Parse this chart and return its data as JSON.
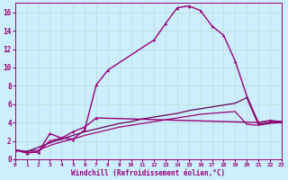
{
  "title": "",
  "xlabel": "Windchill (Refroidissement éolien,°C)",
  "bg_color": "#cceeff",
  "grid_color": "#b8ddd0",
  "line_color": "#990077",
  "x_ticks": [
    0,
    1,
    2,
    3,
    4,
    5,
    6,
    7,
    8,
    9,
    10,
    11,
    12,
    13,
    14,
    15,
    16,
    17,
    18,
    19,
    20,
    21,
    22,
    23
  ],
  "y_ticks": [
    0,
    2,
    4,
    6,
    8,
    10,
    12,
    14,
    16
  ],
  "xlim": [
    0,
    23
  ],
  "ylim": [
    0,
    17
  ],
  "curve1_x": [
    0,
    1,
    2,
    3,
    4,
    5,
    6,
    7,
    8,
    12,
    13,
    14,
    15,
    16,
    17,
    18,
    19,
    20,
    21,
    22,
    23
  ],
  "curve1_y": [
    1.0,
    0.7,
    0.8,
    2.8,
    2.3,
    2.2,
    3.2,
    8.1,
    9.7,
    13.0,
    14.8,
    16.5,
    16.7,
    16.2,
    14.5,
    13.5,
    10.7,
    6.9,
    4.0,
    4.2,
    4.1
  ],
  "curve2_x": [
    0,
    1,
    2,
    3,
    4,
    5,
    6,
    7,
    21,
    22,
    23
  ],
  "curve2_y": [
    1.0,
    0.7,
    0.8,
    2.0,
    2.3,
    3.0,
    3.5,
    4.5,
    4.0,
    4.2,
    4.1
  ],
  "line1_x": [
    0,
    1,
    2,
    3,
    4,
    5,
    6,
    7,
    8,
    9,
    10,
    11,
    12,
    13,
    14,
    15,
    16,
    17,
    18,
    19,
    20,
    21,
    22,
    23
  ],
  "line1_y": [
    1.0,
    0.85,
    1.0,
    1.5,
    1.9,
    2.2,
    2.6,
    2.9,
    3.2,
    3.5,
    3.7,
    3.9,
    4.1,
    4.3,
    4.5,
    4.7,
    4.9,
    5.0,
    5.1,
    5.2,
    3.8,
    3.7,
    3.9,
    4.0
  ],
  "line2_x": [
    0,
    1,
    2,
    3,
    4,
    5,
    6,
    7,
    8,
    9,
    10,
    11,
    12,
    13,
    14,
    15,
    16,
    17,
    18,
    19,
    20,
    21,
    22,
    23
  ],
  "line2_y": [
    1.0,
    0.85,
    1.3,
    1.8,
    2.2,
    2.6,
    3.0,
    3.3,
    3.6,
    3.9,
    4.1,
    4.4,
    4.6,
    4.8,
    5.0,
    5.3,
    5.5,
    5.7,
    5.9,
    6.1,
    6.7,
    3.8,
    4.0,
    4.1
  ]
}
